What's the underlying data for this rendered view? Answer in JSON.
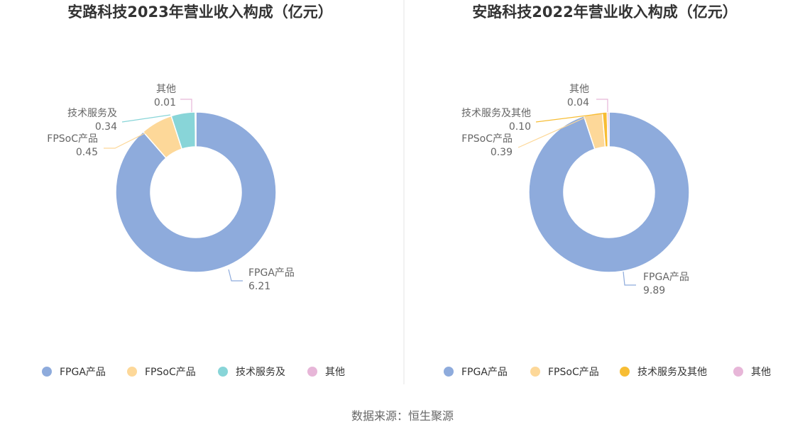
{
  "source": "数据来源：恒生聚源",
  "colors": {
    "divider": "#e6e6e6"
  },
  "chart_data": [
    {
      "type": "pie",
      "title": "安路科技2023年营业收入构成（亿元）",
      "slices": [
        {
          "name": "FPGA产品",
          "value": 6.21,
          "value_label": "6.21",
          "color": "#8eabdc"
        },
        {
          "name": "FPSoC产品",
          "value": 0.45,
          "value_label": "0.45",
          "color": "#fdd899"
        },
        {
          "name": "技术服务及",
          "value": 0.34,
          "value_label": "0.34",
          "color": "#88d5d8"
        },
        {
          "name": "其他",
          "value": 0.01,
          "value_label": "0.01",
          "color": "#e7b6d8"
        }
      ],
      "legend": [
        "FPGA产品",
        "FPSoC产品",
        "技术服务及",
        "其他"
      ],
      "legend_position": "bottom"
    },
    {
      "type": "pie",
      "title": "安路科技2022年营业收入构成（亿元）",
      "slices": [
        {
          "name": "FPGA产品",
          "value": 9.89,
          "value_label": "9.89",
          "color": "#8eabdc"
        },
        {
          "name": "FPSoC产品",
          "value": 0.39,
          "value_label": "0.39",
          "color": "#fdd899"
        },
        {
          "name": "技术服务及其他",
          "value": 0.1,
          "value_label": "0.10",
          "color": "#f7bd34"
        },
        {
          "name": "其他",
          "value": 0.04,
          "value_label": "0.04",
          "color": "#e7b6d8"
        }
      ],
      "legend": [
        "FPGA产品",
        "FPSoC产品",
        "技术服务及其他",
        "其他"
      ],
      "legend_position": "bottom"
    }
  ]
}
